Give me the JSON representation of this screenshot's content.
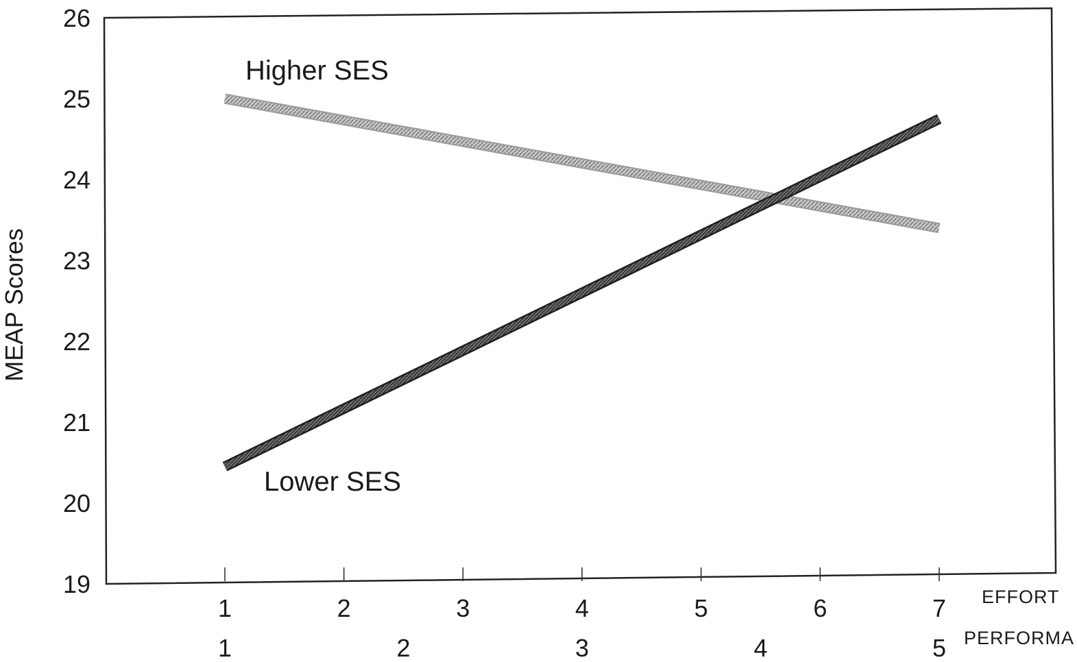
{
  "chart_data": {
    "type": "line",
    "ylabel": "MEAP Scores",
    "ylim": [
      19,
      26
    ],
    "yticks": [
      "19",
      "20",
      "21",
      "22",
      "23",
      "24",
      "25",
      "26"
    ],
    "xaxes": [
      {
        "name": "EFFORT",
        "ticks": [
          "1",
          "2",
          "3",
          "4",
          "5",
          "6",
          "7"
        ],
        "range": [
          1,
          7
        ]
      },
      {
        "name": "PERFORMA",
        "ticks": [
          "1",
          "2",
          "3",
          "4",
          "5"
        ],
        "range": [
          1,
          5
        ]
      }
    ],
    "series": [
      {
        "name": "Higher SES",
        "x": [
          1,
          7
        ],
        "y": [
          25.0,
          23.4
        ],
        "color": "#9a9a9a",
        "style": "hatched"
      },
      {
        "name": "Lower SES",
        "x": [
          1,
          7
        ],
        "y": [
          20.45,
          24.75
        ],
        "color": "#333333",
        "style": "solid"
      }
    ],
    "grid": false,
    "legend": "inline labels"
  }
}
